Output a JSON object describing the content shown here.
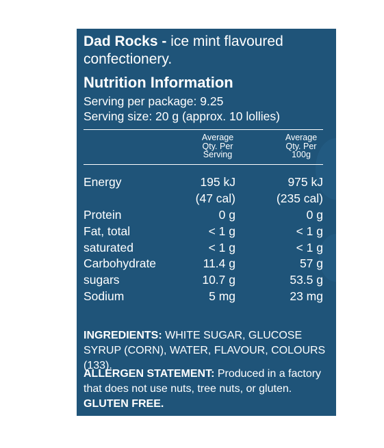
{
  "product": {
    "name": "Dad Rocks -",
    "description": " ice mint flavoured confectionery."
  },
  "nutrition": {
    "heading": "Nutrition Information",
    "servings_per_package": "Serving per package: 9.25",
    "serving_size": "Serving size: 20 g (approx. 10 lollies)",
    "col_serving": [
      "Average",
      "Qty. Per",
      "Serving"
    ],
    "col_100g": [
      "Average",
      "Qty. Per",
      "100g"
    ],
    "rows": [
      {
        "label": "Energy",
        "serving": "195 kJ",
        "per100": "975 kJ"
      },
      {
        "label": "",
        "serving": "(47 cal)",
        "per100": "(235 cal)"
      },
      {
        "label": "Protein",
        "serving": "0 g",
        "per100": "0 g"
      },
      {
        "label": "Fat, total",
        "serving": "< 1 g",
        "per100": "< 1 g"
      },
      {
        "label": "saturated",
        "serving": "< 1 g",
        "per100": "< 1 g"
      },
      {
        "label": "Carbohydrate",
        "serving": "11.4 g",
        "per100": "57 g"
      },
      {
        "label": "sugars",
        "serving": "10.7 g",
        "per100": "53.5 g"
      },
      {
        "label": "Sodium",
        "serving": "5 mg",
        "per100": "23 mg"
      }
    ]
  },
  "ingredients": {
    "label": "INGREDIENTS:",
    "text": " WHITE SUGAR, GLUCOSE SYRUP (CORN), WATER, FLAVOUR, COLOURS (133)."
  },
  "allergen": {
    "label": "ALLERGEN STATEMENT:",
    "text": " Produced in a factory that does not use nuts, tree nuts, or gluten.",
    "gluten_free": "GLUTEN FREE."
  },
  "colors": {
    "panel": "#1f5479",
    "text": "#ffffff"
  }
}
